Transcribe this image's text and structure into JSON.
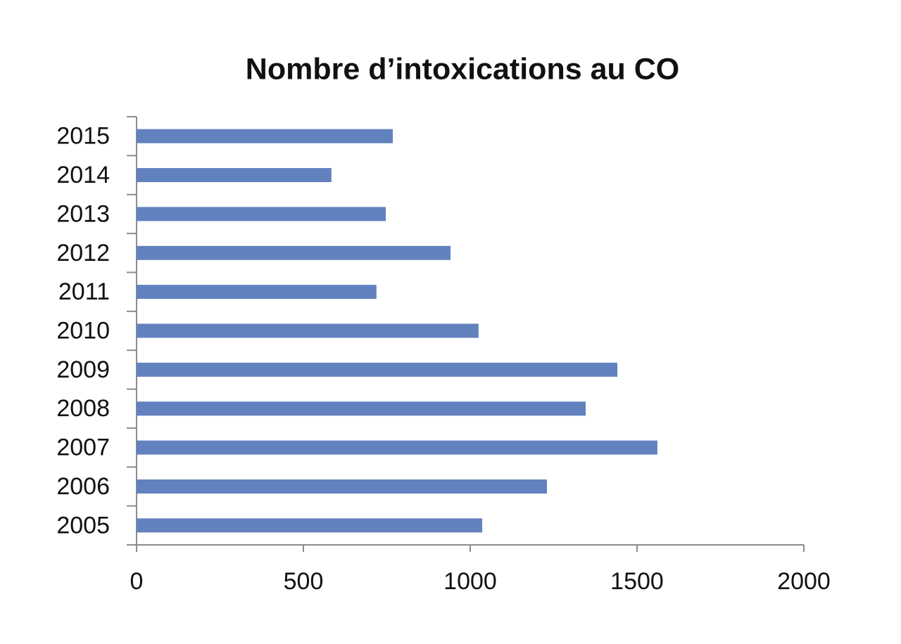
{
  "chart_data": {
    "type": "bar",
    "orientation": "horizontal",
    "title": "Nombre d’intoxications au CO",
    "categories": [
      "2005",
      "2006",
      "2007",
      "2008",
      "2009",
      "2010",
      "2011",
      "2012",
      "2013",
      "2014",
      "2015"
    ],
    "values": [
      1036,
      1230,
      1561,
      1346,
      1441,
      1025,
      719,
      941,
      747,
      584,
      768
    ],
    "color": "#6281bf",
    "xlim": [
      0,
      2000
    ],
    "xticks": [
      0,
      500,
      1000,
      1500,
      2000
    ],
    "grid": false
  }
}
